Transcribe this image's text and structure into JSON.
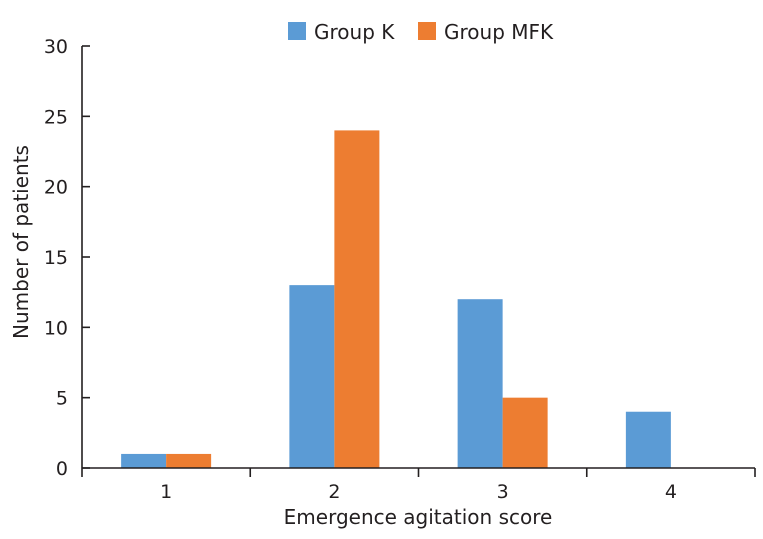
{
  "chart_data": {
    "type": "bar",
    "categories": [
      "1",
      "2",
      "3",
      "4"
    ],
    "series": [
      {
        "name": "Group K",
        "values": [
          1,
          13,
          12,
          4
        ],
        "color": "#5b9bd5"
      },
      {
        "name": "Group MFK",
        "values": [
          1,
          24,
          5,
          0
        ],
        "color": "#ed7d31"
      }
    ],
    "xlabel": "Emergence agitation score",
    "ylabel": "Number of patients",
    "ylim": [
      0,
      30
    ],
    "yticks": [
      0,
      5,
      10,
      15,
      20,
      25,
      30
    ],
    "grid": false,
    "legend_position": "top-center"
  }
}
